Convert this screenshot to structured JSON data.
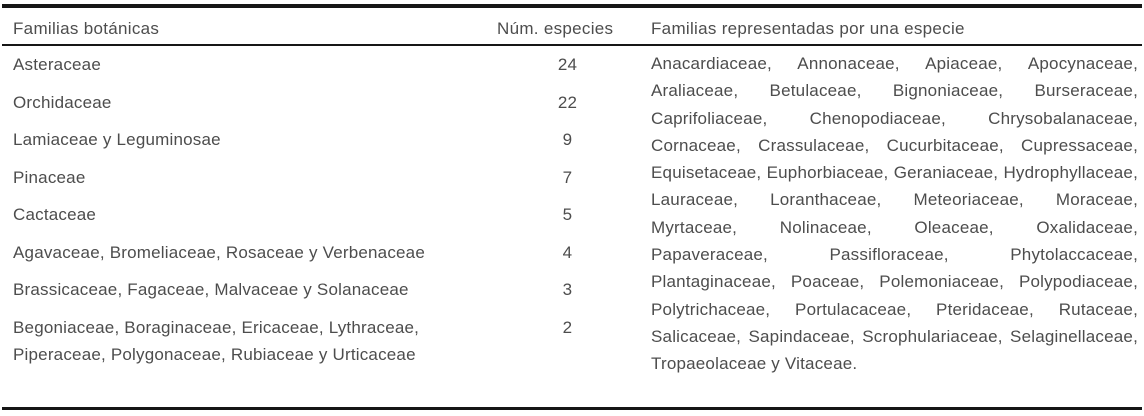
{
  "table": {
    "columns": [
      "Familias botánicas",
      "Núm. especies",
      "Familias representadas por una especie"
    ],
    "rows": [
      {
        "familia": "Asteraceae",
        "num": "24"
      },
      {
        "familia": "Orchidaceae",
        "num": "22"
      },
      {
        "familia": "Lamiaceae y Leguminosae",
        "num": "9"
      },
      {
        "familia": "Pinaceae",
        "num": "7"
      },
      {
        "familia": "Cactaceae",
        "num": "5"
      },
      {
        "familia": "Agavaceae, Bromeliaceae, Rosaceae y Verbenaceae",
        "num": "4"
      },
      {
        "familia": "Brassicaceae, Fagaceae, Malvaceae y Solanaceae",
        "num": "3"
      },
      {
        "familia": "Begoniaceae, Boraginaceae, Ericaceae, Lythraceae, Piperaceae, Polygonaceae, Rubiaceae y Urticaceae",
        "num": "2"
      }
    ],
    "single_species_families": "Anacardiaceae, Annonaceae, Apiaceae, Apocynaceae, Araliaceae, Betulaceae, Bignoniaceae, Burseraceae, Caprifoliaceae, Chenopodiaceae, Chrysobalanaceae, Cornaceae, Crassulaceae, Cucurbitaceae, Cupressaceae, Equisetaceae, Euphorbiaceae, Geraniaceae, Hydrophyllaceae, Lauraceae, Loranthaceae, Meteoriaceae, Moraceae, Myrtaceae, Nolinaceae, Oleaceae, Oxalidaceae, Papaveraceae, Passifloraceae, Phytolaccaceae, Plantaginaceae, Poaceae, Polemoniaceae, Polypodiaceae, Polytrichaceae, Portulacaceae, Pteridaceae, Rutaceae, Salicaceae, Sapindaceae, Scrophulariaceae, Selaginellaceae, Tropaeolaceae y Vitaceae."
  },
  "chart_data": {
    "type": "table",
    "title": "",
    "categories": [
      "Asteraceae",
      "Orchidaceae",
      "Lamiaceae y Leguminosae",
      "Pinaceae",
      "Cactaceae",
      "Agavaceae, Bromeliaceae, Rosaceae y Verbenaceae",
      "Brassicaceae, Fagaceae, Malvaceae y Solanaceae",
      "Begoniaceae, Boraginaceae, Ericaceae, Lythraceae, Piperaceae, Polygonaceae, Rubiaceae y Urticaceae"
    ],
    "values": [
      24,
      22,
      9,
      7,
      5,
      4,
      3,
      2
    ]
  },
  "colors": {
    "text": "#4d4d4d",
    "rule": "#161616",
    "background": "#ffffff"
  }
}
